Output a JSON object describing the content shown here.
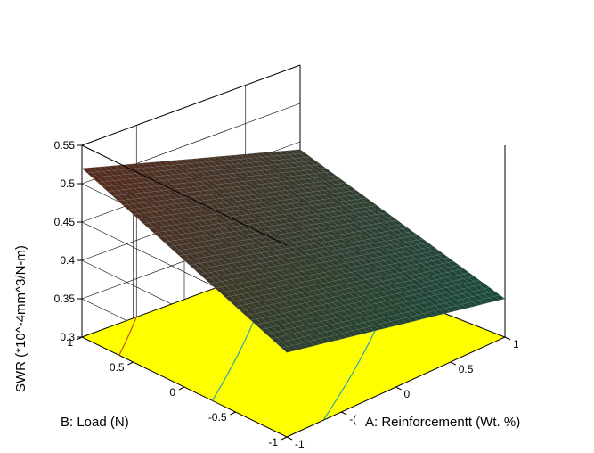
{
  "chart_data": {
    "type": "surface3d",
    "xlabel": "A: Reinforcementt (Wt. %)",
    "ylabel": "B: Load (N)",
    "zlabel": "SWR (*10^-4mm^3/N-m)",
    "xlim": [
      -1,
      1
    ],
    "ylim": [
      -1,
      1
    ],
    "zlim": [
      0.3,
      0.55
    ],
    "x_ticks": [
      -1,
      -0.5,
      0,
      0.5,
      1
    ],
    "x_tick_labels": [
      "-1",
      "-(",
      "0",
      "0.5",
      "1"
    ],
    "y_ticks": [
      -1,
      -0.5,
      0,
      0.5,
      1
    ],
    "y_tick_labels": [
      "-1",
      "-0.5",
      "0",
      "0.5",
      "1"
    ],
    "z_ticks": [
      0.3,
      0.35,
      0.4,
      0.45,
      0.5,
      0.55
    ],
    "z_tick_labels": [
      "0.3",
      "0.35",
      "0.4",
      "0.45",
      "0.5",
      "0.55"
    ],
    "corners": [
      {
        "x": -1,
        "y": -1,
        "z": 0.41
      },
      {
        "x": 1,
        "y": -1,
        "z": 0.35
      },
      {
        "x": -1,
        "y": 1,
        "z": 0.52
      },
      {
        "x": 1,
        "y": 1,
        "z": 0.44
      }
    ],
    "floor_color": "#ffff00",
    "surface_color_low": "#1a4a3a",
    "surface_color_high": "#5a2a1a",
    "surface_dot_color": "#7fa0c0",
    "contour_color": "#2aa8a8",
    "grid": true
  }
}
